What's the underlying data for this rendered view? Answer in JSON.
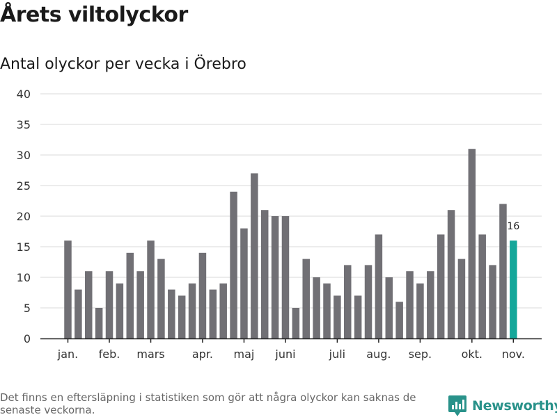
{
  "title": "Årets viltolyckor",
  "subtitle": "Antal olyckor per vecka i Örebro",
  "footnote": "Det finns en eftersläpning i statistiken som gör att några olyckor kan saknas de senaste veckorna.",
  "brand": {
    "name": "Newsworthy",
    "icon": "newsworthy-logo-icon"
  },
  "colors": {
    "bar": "#717075",
    "highlight": "#14a79a",
    "brand": "#29928a",
    "grid": "#d9d9d9",
    "axis": "#222222",
    "text": "#333333"
  },
  "chart_data": {
    "type": "bar",
    "title": "Årets viltolyckor",
    "subtitle": "Antal olyckor per vecka i Örebro",
    "xlabel": "",
    "ylabel": "",
    "ylim": [
      0,
      40
    ],
    "yticks": [
      0,
      5,
      10,
      15,
      20,
      25,
      30,
      35,
      40
    ],
    "grid": true,
    "weeks": [
      1,
      2,
      3,
      4,
      5,
      6,
      7,
      8,
      9,
      10,
      11,
      12,
      13,
      14,
      15,
      16,
      17,
      18,
      19,
      20,
      21,
      22,
      23,
      24,
      25,
      26,
      27,
      28,
      29,
      30,
      31,
      32,
      33,
      34,
      35,
      36,
      37,
      38,
      39,
      40,
      41,
      42,
      43,
      44
    ],
    "values": [
      16,
      8,
      11,
      5,
      11,
      9,
      14,
      11,
      16,
      13,
      8,
      7,
      9,
      14,
      8,
      9,
      24,
      18,
      27,
      21,
      20,
      20,
      5,
      13,
      10,
      9,
      7,
      12,
      7,
      12,
      17,
      10,
      6,
      11,
      9,
      11,
      17,
      21,
      13,
      31,
      17,
      12,
      22,
      16
    ],
    "highlight_index": 43,
    "highlight_label": "16",
    "month_ticks": [
      {
        "label": "jan.",
        "week": 1
      },
      {
        "label": "feb.",
        "week": 5
      },
      {
        "label": "mars",
        "week": 9
      },
      {
        "label": "apr.",
        "week": 14
      },
      {
        "label": "maj",
        "week": 18
      },
      {
        "label": "juni",
        "week": 22
      },
      {
        "label": "juli",
        "week": 27
      },
      {
        "label": "aug.",
        "week": 31
      },
      {
        "label": "sep.",
        "week": 35
      },
      {
        "label": "okt.",
        "week": 40
      },
      {
        "label": "nov.",
        "week": 44
      }
    ]
  }
}
